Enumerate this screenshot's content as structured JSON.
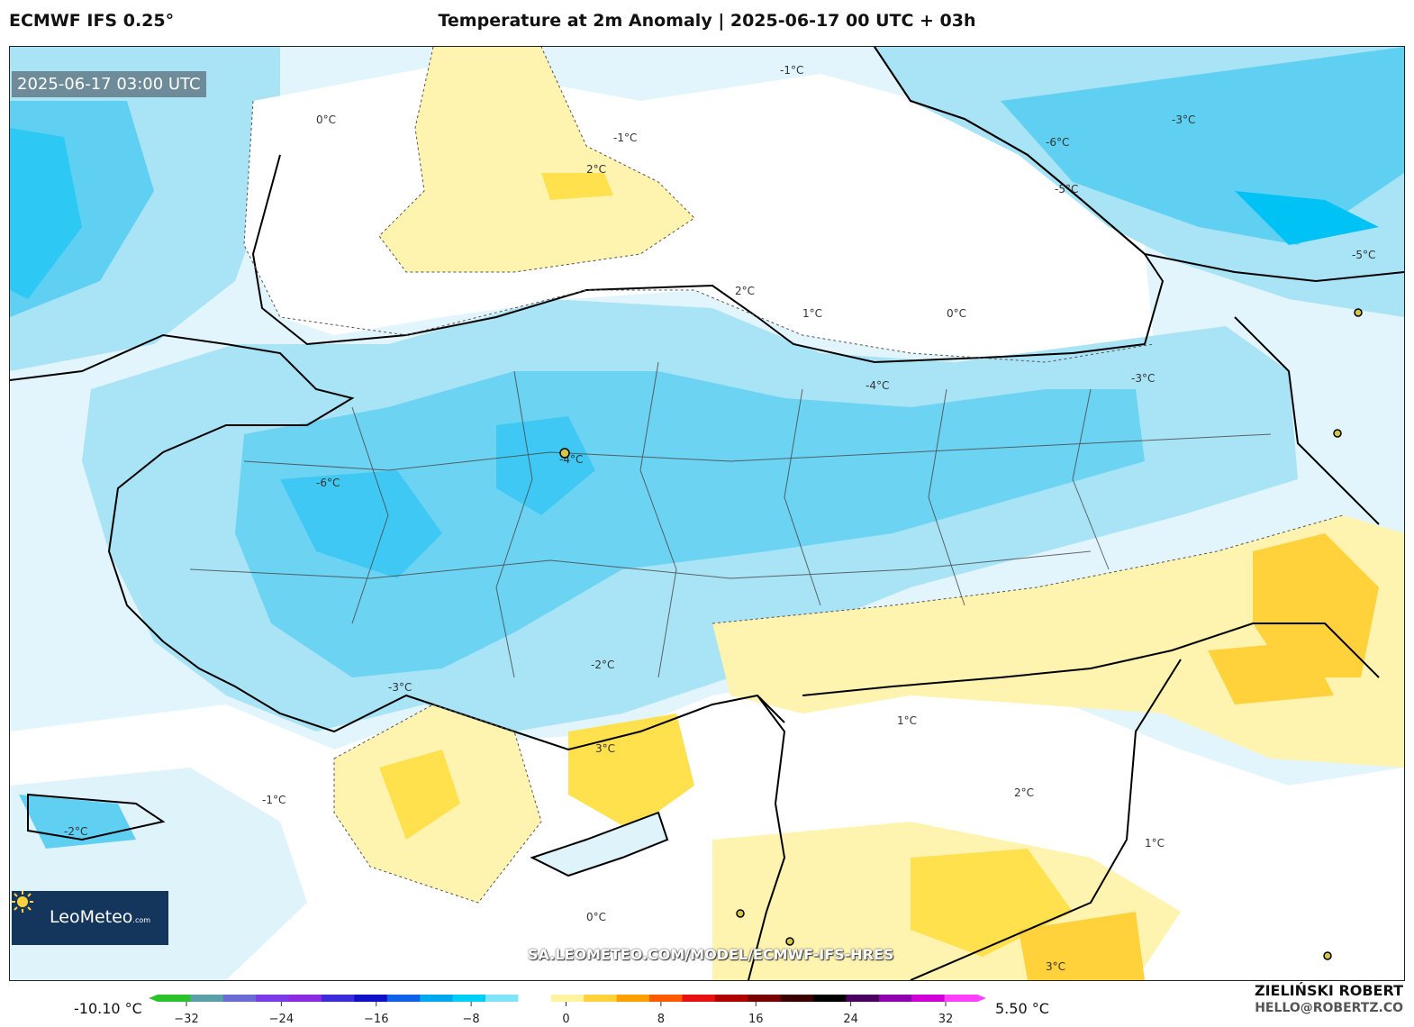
{
  "header": {
    "model": "ECMWF IFS 0.25°",
    "title": "Temperature at 2m Anomaly | 2025-06-17 00 UTC + 03h"
  },
  "map": {
    "valid_time": "2025-06-17 03:00 UTC",
    "source_url": "SA.LEOMETEO.COM/MODEL/ECMWF-IFS-HRES",
    "contour_labels": [
      "0°C",
      "-1°C",
      "-2°C",
      "-3°C",
      "-4°C",
      "-5°C",
      "-6°C",
      "1°C",
      "2°C",
      "3°C"
    ],
    "colors": {
      "cold_strong": "#00c2f5",
      "cold_medium": "#5fd0f2",
      "cold_light": "#a9e3f6",
      "cold_faint": "#dff3fb",
      "neutral": "#ffffff",
      "warm_light": "#fff3b0",
      "warm_medium": "#ffe04d",
      "warm_strong": "#f7c72c",
      "border": "#000000"
    }
  },
  "logo": {
    "name": "LeoMeteo",
    "suffix": ".com",
    "icon": "sun-icon"
  },
  "colorbar": {
    "min_label": "-10.10 °C",
    "max_label": "5.50 °C",
    "ticks": [
      "−32",
      "−24",
      "−16",
      "−8",
      "0",
      "8",
      "16",
      "24",
      "32"
    ],
    "colors": [
      "#2bc32b",
      "#5aa0a8",
      "#6b6bd6",
      "#7a3be8",
      "#8a2be2",
      "#3b2bd8",
      "#1010c8",
      "#1060e8",
      "#00a8f0",
      "#00d0f8",
      "#80e4f8",
      "#ffffff",
      "#fff3a0",
      "#ffd23c",
      "#ffa000",
      "#ff5a00",
      "#e81010",
      "#b00000",
      "#780000",
      "#3a0000",
      "#000000",
      "#4a0060",
      "#9000b0",
      "#d000d8",
      "#ff40ff"
    ]
  },
  "author": {
    "name": "ZIELIŃSKI ROBERT",
    "email": "HELLO@ROBERTZ.CO"
  }
}
